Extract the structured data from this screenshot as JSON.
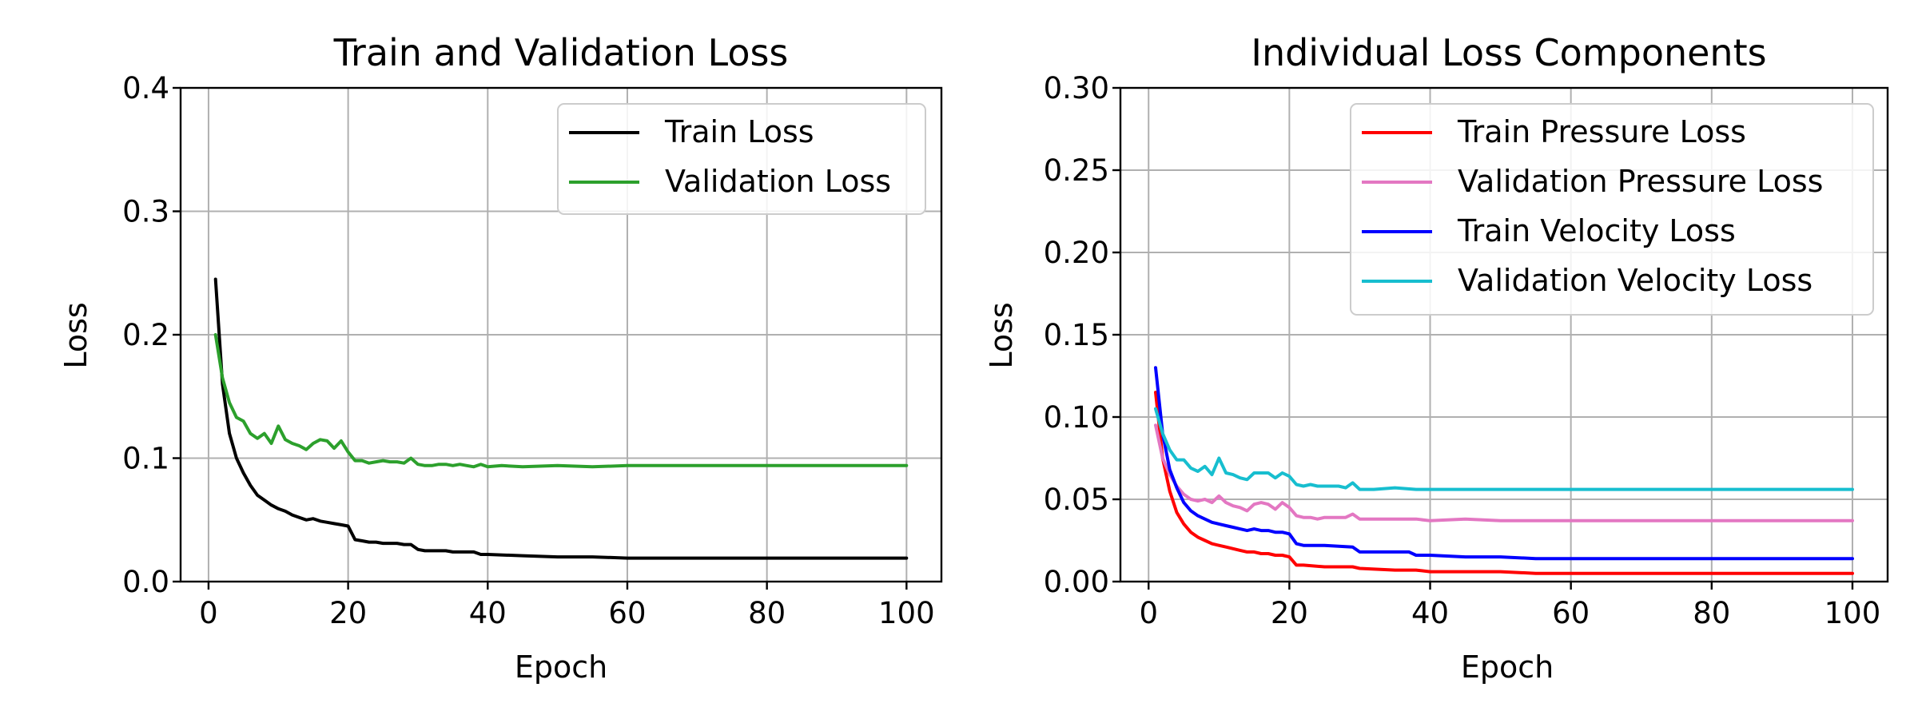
{
  "chart_data": [
    {
      "type": "line",
      "title": "Train and Validation Loss",
      "xlabel": "Epoch",
      "ylabel": "Loss",
      "xlim": [
        -4,
        105
      ],
      "ylim": [
        0,
        0.4
      ],
      "xticks": [
        0,
        20,
        40,
        60,
        80,
        100
      ],
      "yticks": [
        0.0,
        0.1,
        0.2,
        0.3,
        0.4
      ],
      "ytick_labels": [
        "0.0",
        "0.1",
        "0.2",
        "0.3",
        "0.4"
      ],
      "grid": true,
      "legend": "upper right",
      "series": [
        {
          "name": "Train Loss",
          "color": "#000000",
          "x": [
            1,
            2,
            3,
            4,
            5,
            6,
            7,
            8,
            9,
            10,
            11,
            12,
            13,
            14,
            15,
            16,
            17,
            18,
            19,
            20,
            21,
            22,
            23,
            24,
            25,
            26,
            27,
            28,
            29,
            30,
            31,
            32,
            33,
            34,
            35,
            36,
            37,
            38,
            39,
            40,
            45,
            50,
            55,
            60,
            65,
            70,
            75,
            80,
            85,
            90,
            95,
            100
          ],
          "values": [
            0.245,
            0.16,
            0.12,
            0.1,
            0.088,
            0.078,
            0.07,
            0.066,
            0.062,
            0.059,
            0.057,
            0.054,
            0.052,
            0.05,
            0.051,
            0.049,
            0.048,
            0.047,
            0.046,
            0.045,
            0.034,
            0.033,
            0.032,
            0.032,
            0.031,
            0.031,
            0.031,
            0.03,
            0.03,
            0.026,
            0.025,
            0.025,
            0.025,
            0.025,
            0.024,
            0.024,
            0.024,
            0.024,
            0.022,
            0.022,
            0.021,
            0.02,
            0.02,
            0.019,
            0.019,
            0.019,
            0.019,
            0.019,
            0.019,
            0.019,
            0.019,
            0.019
          ]
        },
        {
          "name": "Validation Loss",
          "color": "#2ca02c",
          "x": [
            1,
            2,
            3,
            4,
            5,
            6,
            7,
            8,
            9,
            10,
            11,
            12,
            13,
            14,
            15,
            16,
            17,
            18,
            19,
            20,
            21,
            22,
            23,
            24,
            25,
            26,
            27,
            28,
            29,
            30,
            31,
            32,
            33,
            34,
            35,
            36,
            37,
            38,
            39,
            40,
            42,
            45,
            50,
            55,
            60,
            65,
            70,
            75,
            80,
            85,
            90,
            95,
            100
          ],
          "values": [
            0.2,
            0.165,
            0.145,
            0.133,
            0.13,
            0.12,
            0.116,
            0.12,
            0.112,
            0.126,
            0.115,
            0.112,
            0.11,
            0.107,
            0.112,
            0.115,
            0.114,
            0.108,
            0.114,
            0.105,
            0.098,
            0.098,
            0.096,
            0.097,
            0.098,
            0.097,
            0.097,
            0.096,
            0.1,
            0.095,
            0.094,
            0.094,
            0.095,
            0.095,
            0.094,
            0.095,
            0.094,
            0.093,
            0.095,
            0.093,
            0.094,
            0.093,
            0.094,
            0.093,
            0.094,
            0.094,
            0.094,
            0.094,
            0.094,
            0.094,
            0.094,
            0.094,
            0.094
          ]
        }
      ]
    },
    {
      "type": "line",
      "title": "Individual Loss Components",
      "xlabel": "Epoch",
      "ylabel": "Loss",
      "xlim": [
        -4,
        105
      ],
      "ylim": [
        0,
        0.3
      ],
      "xticks": [
        0,
        20,
        40,
        60,
        80,
        100
      ],
      "yticks": [
        0.0,
        0.05,
        0.1,
        0.15,
        0.2,
        0.25,
        0.3
      ],
      "ytick_labels": [
        "0.00",
        "0.05",
        "0.10",
        "0.15",
        "0.20",
        "0.25",
        "0.30"
      ],
      "grid": true,
      "legend": "upper right",
      "series": [
        {
          "name": "Train Pressure Loss",
          "color": "#ff0000",
          "x": [
            1,
            2,
            3,
            4,
            5,
            6,
            7,
            8,
            9,
            10,
            11,
            12,
            13,
            14,
            15,
            16,
            17,
            18,
            19,
            20,
            21,
            22,
            25,
            29,
            30,
            35,
            38,
            40,
            45,
            50,
            55,
            60,
            70,
            80,
            90,
            100
          ],
          "values": [
            0.115,
            0.075,
            0.055,
            0.042,
            0.035,
            0.03,
            0.027,
            0.025,
            0.023,
            0.022,
            0.021,
            0.02,
            0.019,
            0.018,
            0.018,
            0.017,
            0.017,
            0.016,
            0.016,
            0.015,
            0.01,
            0.01,
            0.009,
            0.009,
            0.008,
            0.007,
            0.007,
            0.006,
            0.006,
            0.006,
            0.005,
            0.005,
            0.005,
            0.005,
            0.005,
            0.005
          ]
        },
        {
          "name": "Validation Pressure Loss",
          "color": "#e377c2",
          "x": [
            1,
            2,
            3,
            4,
            5,
            6,
            7,
            8,
            9,
            10,
            11,
            12,
            13,
            14,
            15,
            16,
            17,
            18,
            19,
            20,
            21,
            22,
            23,
            24,
            25,
            26,
            27,
            28,
            29,
            30,
            32,
            35,
            38,
            40,
            45,
            50,
            55,
            60,
            70,
            80,
            90,
            100
          ],
          "values": [
            0.095,
            0.075,
            0.065,
            0.058,
            0.053,
            0.05,
            0.049,
            0.05,
            0.048,
            0.052,
            0.048,
            0.046,
            0.045,
            0.043,
            0.047,
            0.048,
            0.047,
            0.044,
            0.048,
            0.045,
            0.04,
            0.039,
            0.039,
            0.038,
            0.039,
            0.039,
            0.039,
            0.039,
            0.041,
            0.038,
            0.038,
            0.038,
            0.038,
            0.037,
            0.038,
            0.037,
            0.037,
            0.037,
            0.037,
            0.037,
            0.037,
            0.037
          ]
        },
        {
          "name": "Train Velocity Loss",
          "color": "#0000ff",
          "x": [
            1,
            2,
            3,
            4,
            5,
            6,
            7,
            8,
            9,
            10,
            11,
            12,
            13,
            14,
            15,
            16,
            17,
            18,
            19,
            20,
            21,
            22,
            25,
            29,
            30,
            35,
            37,
            38,
            40,
            45,
            50,
            55,
            60,
            70,
            80,
            90,
            100
          ],
          "values": [
            0.13,
            0.09,
            0.068,
            0.057,
            0.048,
            0.043,
            0.04,
            0.038,
            0.036,
            0.035,
            0.034,
            0.033,
            0.032,
            0.031,
            0.032,
            0.031,
            0.031,
            0.03,
            0.03,
            0.029,
            0.023,
            0.022,
            0.022,
            0.021,
            0.018,
            0.018,
            0.018,
            0.016,
            0.016,
            0.015,
            0.015,
            0.014,
            0.014,
            0.014,
            0.014,
            0.014,
            0.014
          ]
        },
        {
          "name": "Validation Velocity Loss",
          "color": "#17becf",
          "x": [
            1,
            2,
            3,
            4,
            5,
            6,
            7,
            8,
            9,
            10,
            11,
            12,
            13,
            14,
            15,
            16,
            17,
            18,
            19,
            20,
            21,
            22,
            23,
            24,
            25,
            26,
            27,
            28,
            29,
            30,
            32,
            35,
            38,
            40,
            45,
            50,
            55,
            60,
            70,
            80,
            90,
            100
          ],
          "values": [
            0.105,
            0.09,
            0.08,
            0.074,
            0.074,
            0.069,
            0.067,
            0.07,
            0.065,
            0.075,
            0.066,
            0.065,
            0.063,
            0.062,
            0.066,
            0.066,
            0.066,
            0.063,
            0.066,
            0.064,
            0.059,
            0.058,
            0.059,
            0.058,
            0.058,
            0.058,
            0.058,
            0.057,
            0.06,
            0.056,
            0.056,
            0.057,
            0.056,
            0.056,
            0.056,
            0.056,
            0.056,
            0.056,
            0.056,
            0.056,
            0.056,
            0.056
          ]
        }
      ]
    }
  ]
}
